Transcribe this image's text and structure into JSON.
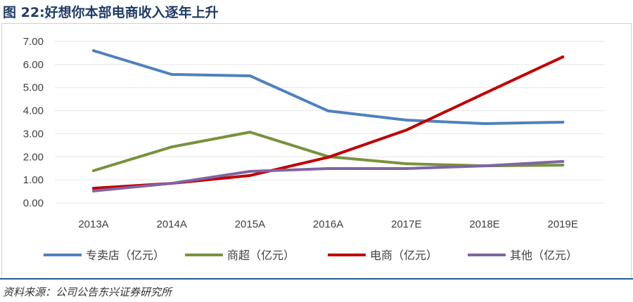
{
  "title": "图 22:好想你本部电商收入逐年上升",
  "source": "资料来源：公司公告东兴证券研究所",
  "chart_data": {
    "type": "line",
    "title": "",
    "xlabel": "",
    "ylabel": "",
    "categories": [
      "2013A",
      "2014A",
      "2015A",
      "2016A",
      "2017E",
      "2018E",
      "2019E"
    ],
    "ylim": [
      0,
      7
    ],
    "yticks": [
      "0.00",
      "1.00",
      "2.00",
      "3.00",
      "4.00",
      "5.00",
      "6.00",
      "7.00"
    ],
    "grid": true,
    "legend_position": "bottom",
    "series": [
      {
        "name": "专卖店（亿元）",
        "color": "#4f81bd",
        "values": [
          6.6,
          5.57,
          5.51,
          3.99,
          3.59,
          3.44,
          3.5
        ]
      },
      {
        "name": "商超（亿元）",
        "color": "#77933c",
        "values": [
          1.4,
          2.43,
          3.07,
          2.01,
          1.7,
          1.61,
          1.64
        ]
      },
      {
        "name": "电商（亿元）",
        "color": "#c00000",
        "values": [
          0.64,
          0.85,
          1.19,
          1.98,
          3.16,
          4.75,
          6.33
        ]
      },
      {
        "name": "其他（亿元）",
        "color": "#8064a2",
        "values": [
          0.52,
          0.85,
          1.37,
          1.49,
          1.49,
          1.61,
          1.8
        ]
      }
    ]
  }
}
